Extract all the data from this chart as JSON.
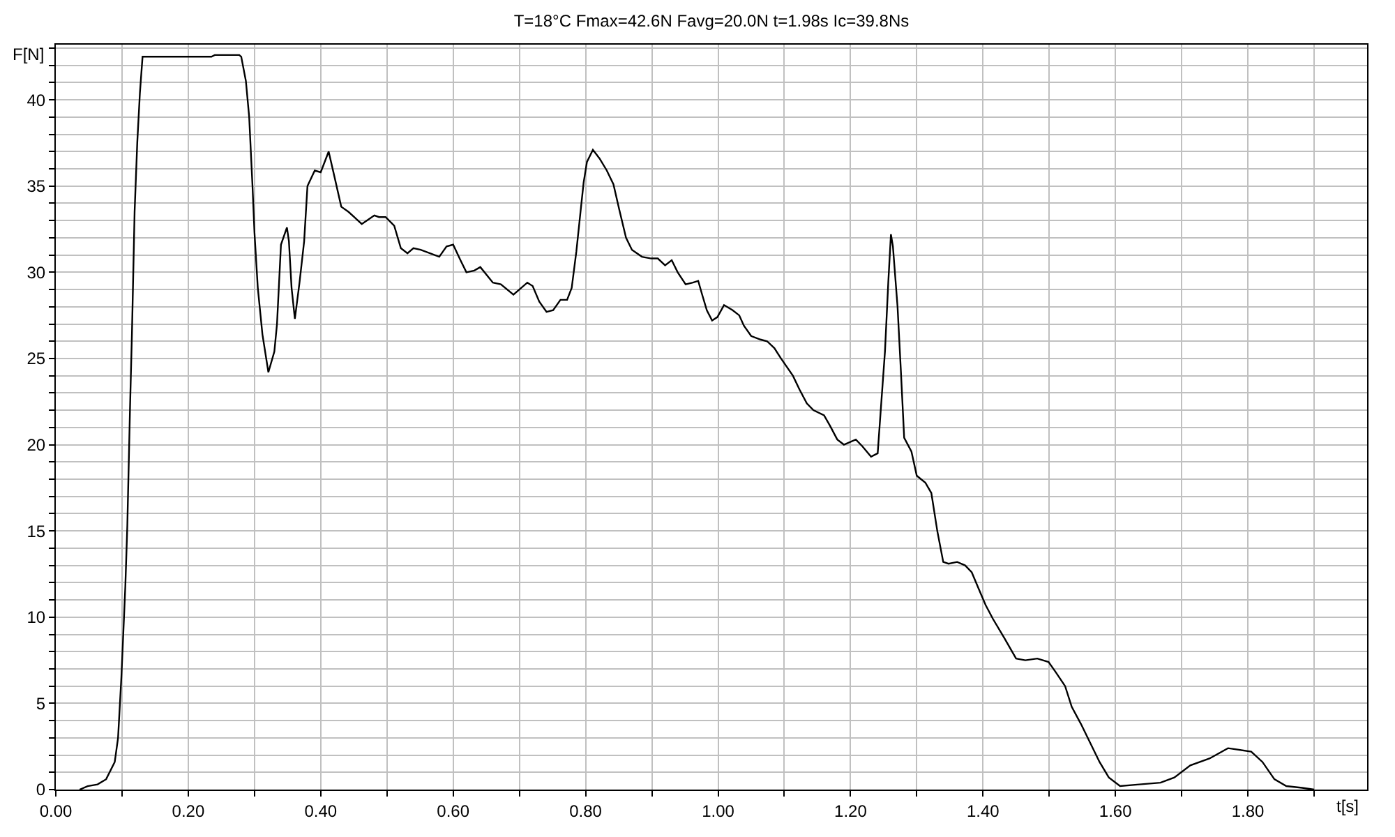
{
  "chart_data": {
    "type": "line",
    "title": "T=18°C Fmax=42.6N Favg=20.0N t=1.98s Ic=39.8Ns",
    "xlabel": "t[s]",
    "ylabel": "F[N]",
    "x": [
      0.036,
      0.048,
      0.063,
      0.076,
      0.089,
      0.094,
      0.099,
      0.102,
      0.105,
      0.108,
      0.112,
      0.115,
      0.119,
      0.123,
      0.127,
      0.131,
      0.235,
      0.24,
      0.277,
      0.28,
      0.287,
      0.292,
      0.297,
      0.3,
      0.305,
      0.312,
      0.321,
      0.33,
      0.334,
      0.34,
      0.349,
      0.352,
      0.356,
      0.361,
      0.368,
      0.375,
      0.38,
      0.391,
      0.4,
      0.412,
      0.421,
      0.431,
      0.442,
      0.462,
      0.481,
      0.488,
      0.498,
      0.511,
      0.521,
      0.531,
      0.54,
      0.551,
      0.579,
      0.59,
      0.6,
      0.611,
      0.62,
      0.632,
      0.641,
      0.66,
      0.672,
      0.691,
      0.712,
      0.72,
      0.73,
      0.741,
      0.751,
      0.762,
      0.772,
      0.779,
      0.786,
      0.792,
      0.797,
      0.802,
      0.811,
      0.821,
      0.832,
      0.842,
      0.851,
      0.861,
      0.87,
      0.885,
      0.899,
      0.909,
      0.92,
      0.93,
      0.939,
      0.951,
      0.962,
      0.97,
      0.976,
      0.983,
      0.991,
      0.999,
      1.009,
      1.022,
      1.032,
      1.039,
      1.05,
      1.064,
      1.074,
      1.085,
      1.095,
      1.113,
      1.123,
      1.134,
      1.144,
      1.16,
      1.169,
      1.18,
      1.19,
      1.208,
      1.218,
      1.231,
      1.241,
      1.246,
      1.252,
      1.257,
      1.261,
      1.264,
      1.271,
      1.276,
      1.281,
      1.292,
      1.3,
      1.313,
      1.322,
      1.331,
      1.34,
      1.348,
      1.361,
      1.373,
      1.383,
      1.394,
      1.404,
      1.415,
      1.432,
      1.45,
      1.464,
      1.482,
      1.499,
      1.51,
      1.524,
      1.534,
      1.548,
      1.562,
      1.576,
      1.59,
      1.607,
      1.636,
      1.668,
      1.689,
      1.713,
      1.742,
      1.77,
      1.805,
      1.822,
      1.84,
      1.858,
      1.882,
      1.9
    ],
    "series": [
      {
        "color": "#000000",
        "values": [
          0,
          0.2,
          0.3,
          0.6,
          1.6,
          3.0,
          6.5,
          9.1,
          11.8,
          15.3,
          22.0,
          26.5,
          33.5,
          37.5,
          40.4,
          42.5,
          42.5,
          42.6,
          42.6,
          42.5,
          41.1,
          39.0,
          35.0,
          32.3,
          29.1,
          26.4,
          24.2,
          25.4,
          27.0,
          31.6,
          32.6,
          31.8,
          29.1,
          27.3,
          29.4,
          31.8,
          35.0,
          35.9,
          35.8,
          37.0,
          35.5,
          33.8,
          33.5,
          32.8,
          33.3,
          33.2,
          33.2,
          32.7,
          31.4,
          31.1,
          31.4,
          31.3,
          30.9,
          31.5,
          31.6,
          30.7,
          30.0,
          30.1,
          30.3,
          29.4,
          29.3,
          28.7,
          29.4,
          29.2,
          28.3,
          27.7,
          27.8,
          28.4,
          28.4,
          29.1,
          31.2,
          33.4,
          35.2,
          36.4,
          37.1,
          36.6,
          35.9,
          35.1,
          33.6,
          32.0,
          31.3,
          30.9,
          30.8,
          30.8,
          30.4,
          30.7,
          30.0,
          29.3,
          29.4,
          29.5,
          28.7,
          27.8,
          27.2,
          27.4,
          28.1,
          27.8,
          27.5,
          26.9,
          26.3,
          26.1,
          26.0,
          25.6,
          25.0,
          24.0,
          23.2,
          22.4,
          22.0,
          21.7,
          21.1,
          20.3,
          20.0,
          20.3,
          19.9,
          19.3,
          19.5,
          22.2,
          25.4,
          29.4,
          32.2,
          31.5,
          28.0,
          24.3,
          20.4,
          19.6,
          18.2,
          17.8,
          17.2,
          15.0,
          13.2,
          13.1,
          13.2,
          13.0,
          12.6,
          11.6,
          10.7,
          9.9,
          8.8,
          7.6,
          7.5,
          7.6,
          7.4,
          6.8,
          6.0,
          4.8,
          3.8,
          2.7,
          1.6,
          0.7,
          0.2,
          0.3,
          0.4,
          0.7,
          1.4,
          1.8,
          2.4,
          2.2,
          1.6,
          0.6,
          0.2,
          0.1,
          0
        ]
      }
    ],
    "xlim": [
      0,
      1.98
    ],
    "ylim": [
      0,
      43.2
    ],
    "xticks": [
      {
        "value": 0,
        "label": "0.00"
      },
      {
        "value": 0.1,
        "label": null
      },
      {
        "value": 0.2,
        "label": "0.20"
      },
      {
        "value": 0.3,
        "label": null
      },
      {
        "value": 0.4,
        "label": "0.40"
      },
      {
        "value": 0.5,
        "label": null
      },
      {
        "value": 0.6,
        "label": "0.60"
      },
      {
        "value": 0.7,
        "label": null
      },
      {
        "value": 0.8,
        "label": "0.80"
      },
      {
        "value": 0.9,
        "label": null
      },
      {
        "value": 1.0,
        "label": "1.00"
      },
      {
        "value": 1.1,
        "label": null
      },
      {
        "value": 1.2,
        "label": "1.20"
      },
      {
        "value": 1.3,
        "label": null
      },
      {
        "value": 1.4,
        "label": "1.40"
      },
      {
        "value": 1.5,
        "label": null
      },
      {
        "value": 1.6,
        "label": "1.60"
      },
      {
        "value": 1.7,
        "label": null
      },
      {
        "value": 1.8,
        "label": "1.80"
      },
      {
        "value": 1.9,
        "label": null
      }
    ],
    "yticks": [
      0,
      {
        "value": 1,
        "label": null
      },
      {
        "value": 2,
        "label": null
      },
      {
        "value": 3,
        "label": null
      },
      {
        "value": 4,
        "label": null
      },
      5,
      {
        "value": 6,
        "label": null
      },
      {
        "value": 7,
        "label": null
      },
      {
        "value": 8,
        "label": null
      },
      {
        "value": 9,
        "label": null
      },
      10,
      {
        "value": 11,
        "label": null
      },
      {
        "value": 12,
        "label": null
      },
      {
        "value": 13,
        "label": null
      },
      {
        "value": 14,
        "label": null
      },
      15,
      {
        "value": 16,
        "label": null
      },
      {
        "value": 17,
        "label": null
      },
      {
        "value": 18,
        "label": null
      },
      {
        "value": 19,
        "label": null
      },
      20,
      {
        "value": 21,
        "label": null
      },
      {
        "value": 22,
        "label": null
      },
      {
        "value": 23,
        "label": null
      },
      {
        "value": 24,
        "label": null
      },
      25,
      {
        "value": 26,
        "label": null
      },
      {
        "value": 27,
        "label": null
      },
      {
        "value": 28,
        "label": null
      },
      {
        "value": 29,
        "label": null
      },
      30,
      {
        "value": 31,
        "label": null
      },
      {
        "value": 32,
        "label": null
      },
      {
        "value": 33,
        "label": null
      },
      {
        "value": 34,
        "label": null
      },
      35,
      {
        "value": 36,
        "label": null
      },
      {
        "value": 37,
        "label": null
      },
      {
        "value": 38,
        "label": null
      },
      {
        "value": 39,
        "label": null
      },
      40,
      {
        "value": 41,
        "label": null
      },
      {
        "value": 42,
        "label": null
      },
      {
        "value": 43,
        "label": null
      }
    ],
    "grid": true,
    "line_style": "solid"
  }
}
